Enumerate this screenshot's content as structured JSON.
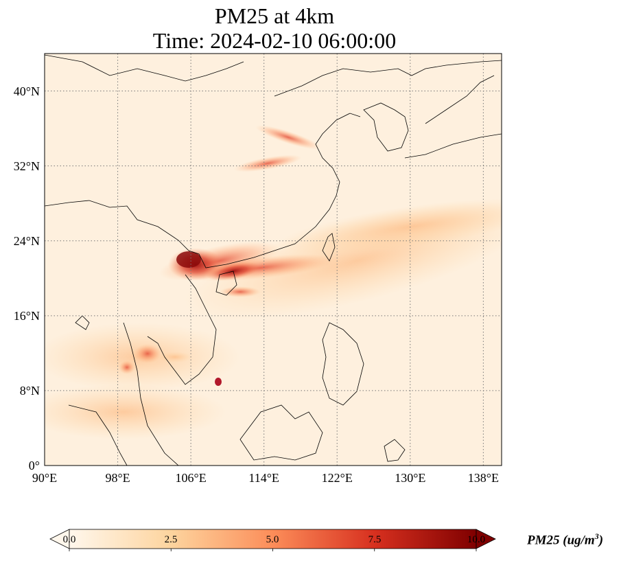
{
  "title": {
    "line1": "PM25 at 4km",
    "line2": "Time: 2024-02-10 06:00:00"
  },
  "map": {
    "extent_lon": [
      90,
      140
    ],
    "extent_lat": [
      0,
      44
    ],
    "lat_ticks": [
      {
        "value": 0,
        "label": "0°"
      },
      {
        "value": 8,
        "label": "8°N"
      },
      {
        "value": 16,
        "label": "16°N"
      },
      {
        "value": 24,
        "label": "24°N"
      },
      {
        "value": 32,
        "label": "32°N"
      },
      {
        "value": 40,
        "label": "40°N"
      }
    ],
    "lon_ticks": [
      {
        "value": 90,
        "label": "90°E"
      },
      {
        "value": 98,
        "label": "98°E"
      },
      {
        "value": 106,
        "label": "106°E"
      },
      {
        "value": 114,
        "label": "114°E"
      },
      {
        "value": 122,
        "label": "122°E"
      },
      {
        "value": 130,
        "label": "130°E"
      },
      {
        "value": 138,
        "label": "138°E"
      }
    ],
    "gridlines": true,
    "gridline_style": "dotted"
  },
  "colorbar": {
    "colormap": "OrRd",
    "min": 0.0,
    "max": 10.0,
    "extend": "both",
    "ticks": [
      "0.0",
      "2.5",
      "5.0",
      "7.5",
      "10.0"
    ],
    "label_var": "PM25",
    "label_unit_base": "(ug/m",
    "label_unit_exp": "3",
    "label_unit_close": ")",
    "colors": [
      "#fff7ec",
      "#fdd49e",
      "#fc8d59",
      "#d7301f",
      "#7f0000"
    ]
  }
}
